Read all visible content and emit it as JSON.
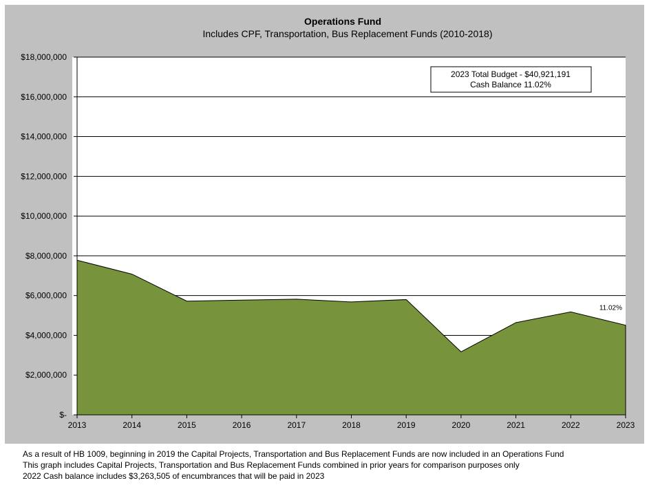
{
  "chart_data": {
    "type": "area",
    "title": "Operations Fund",
    "subtitle": "Includes CPF, Transportation, Bus Replacement Funds (2010-2018)",
    "categories": [
      "2013",
      "2014",
      "2015",
      "2016",
      "2017",
      "2018",
      "2019",
      "2020",
      "2021",
      "2022",
      "2023"
    ],
    "series": [
      {
        "values": [
          7780000,
          7080000,
          5720000,
          5770000,
          5820000,
          5680000,
          5800000,
          3170000,
          4640000,
          5180000,
          4510000
        ]
      }
    ],
    "ylim": [
      0,
      18000000
    ],
    "yticks": [
      0,
      2000000,
      4000000,
      6000000,
      8000000,
      10000000,
      12000000,
      14000000,
      16000000,
      18000000
    ],
    "ytick_labels": [
      "$-",
      "$2,000,000",
      "$4,000,000",
      "$6,000,000",
      "$8,000,000",
      "$10,000,000",
      "$12,000,000",
      "$14,000,000",
      "$16,000,000",
      "$18,000,000"
    ],
    "grid": true,
    "data_label": {
      "category": "2023",
      "text": "11.02%"
    },
    "info_box": [
      "2023 Total Budget - $40,921,191",
      "Cash Balance 11.02%"
    ],
    "fill_color": "#77933c",
    "background_color": "#c0c0c0",
    "plot_background_color": "#ffffff"
  },
  "notes": [
    "As a result of HB 1009, beginning in 2019 the Capital Projects, Transportation and Bus Replacement Funds are now included in an Operations Fund",
    "This graph includes Capital Projects, Transportation and Bus Replacement Funds combined in prior years for comparison purposes only",
    "2022 Cash balance includes $3,263,505 of encumbrances that will be paid in 2023"
  ]
}
